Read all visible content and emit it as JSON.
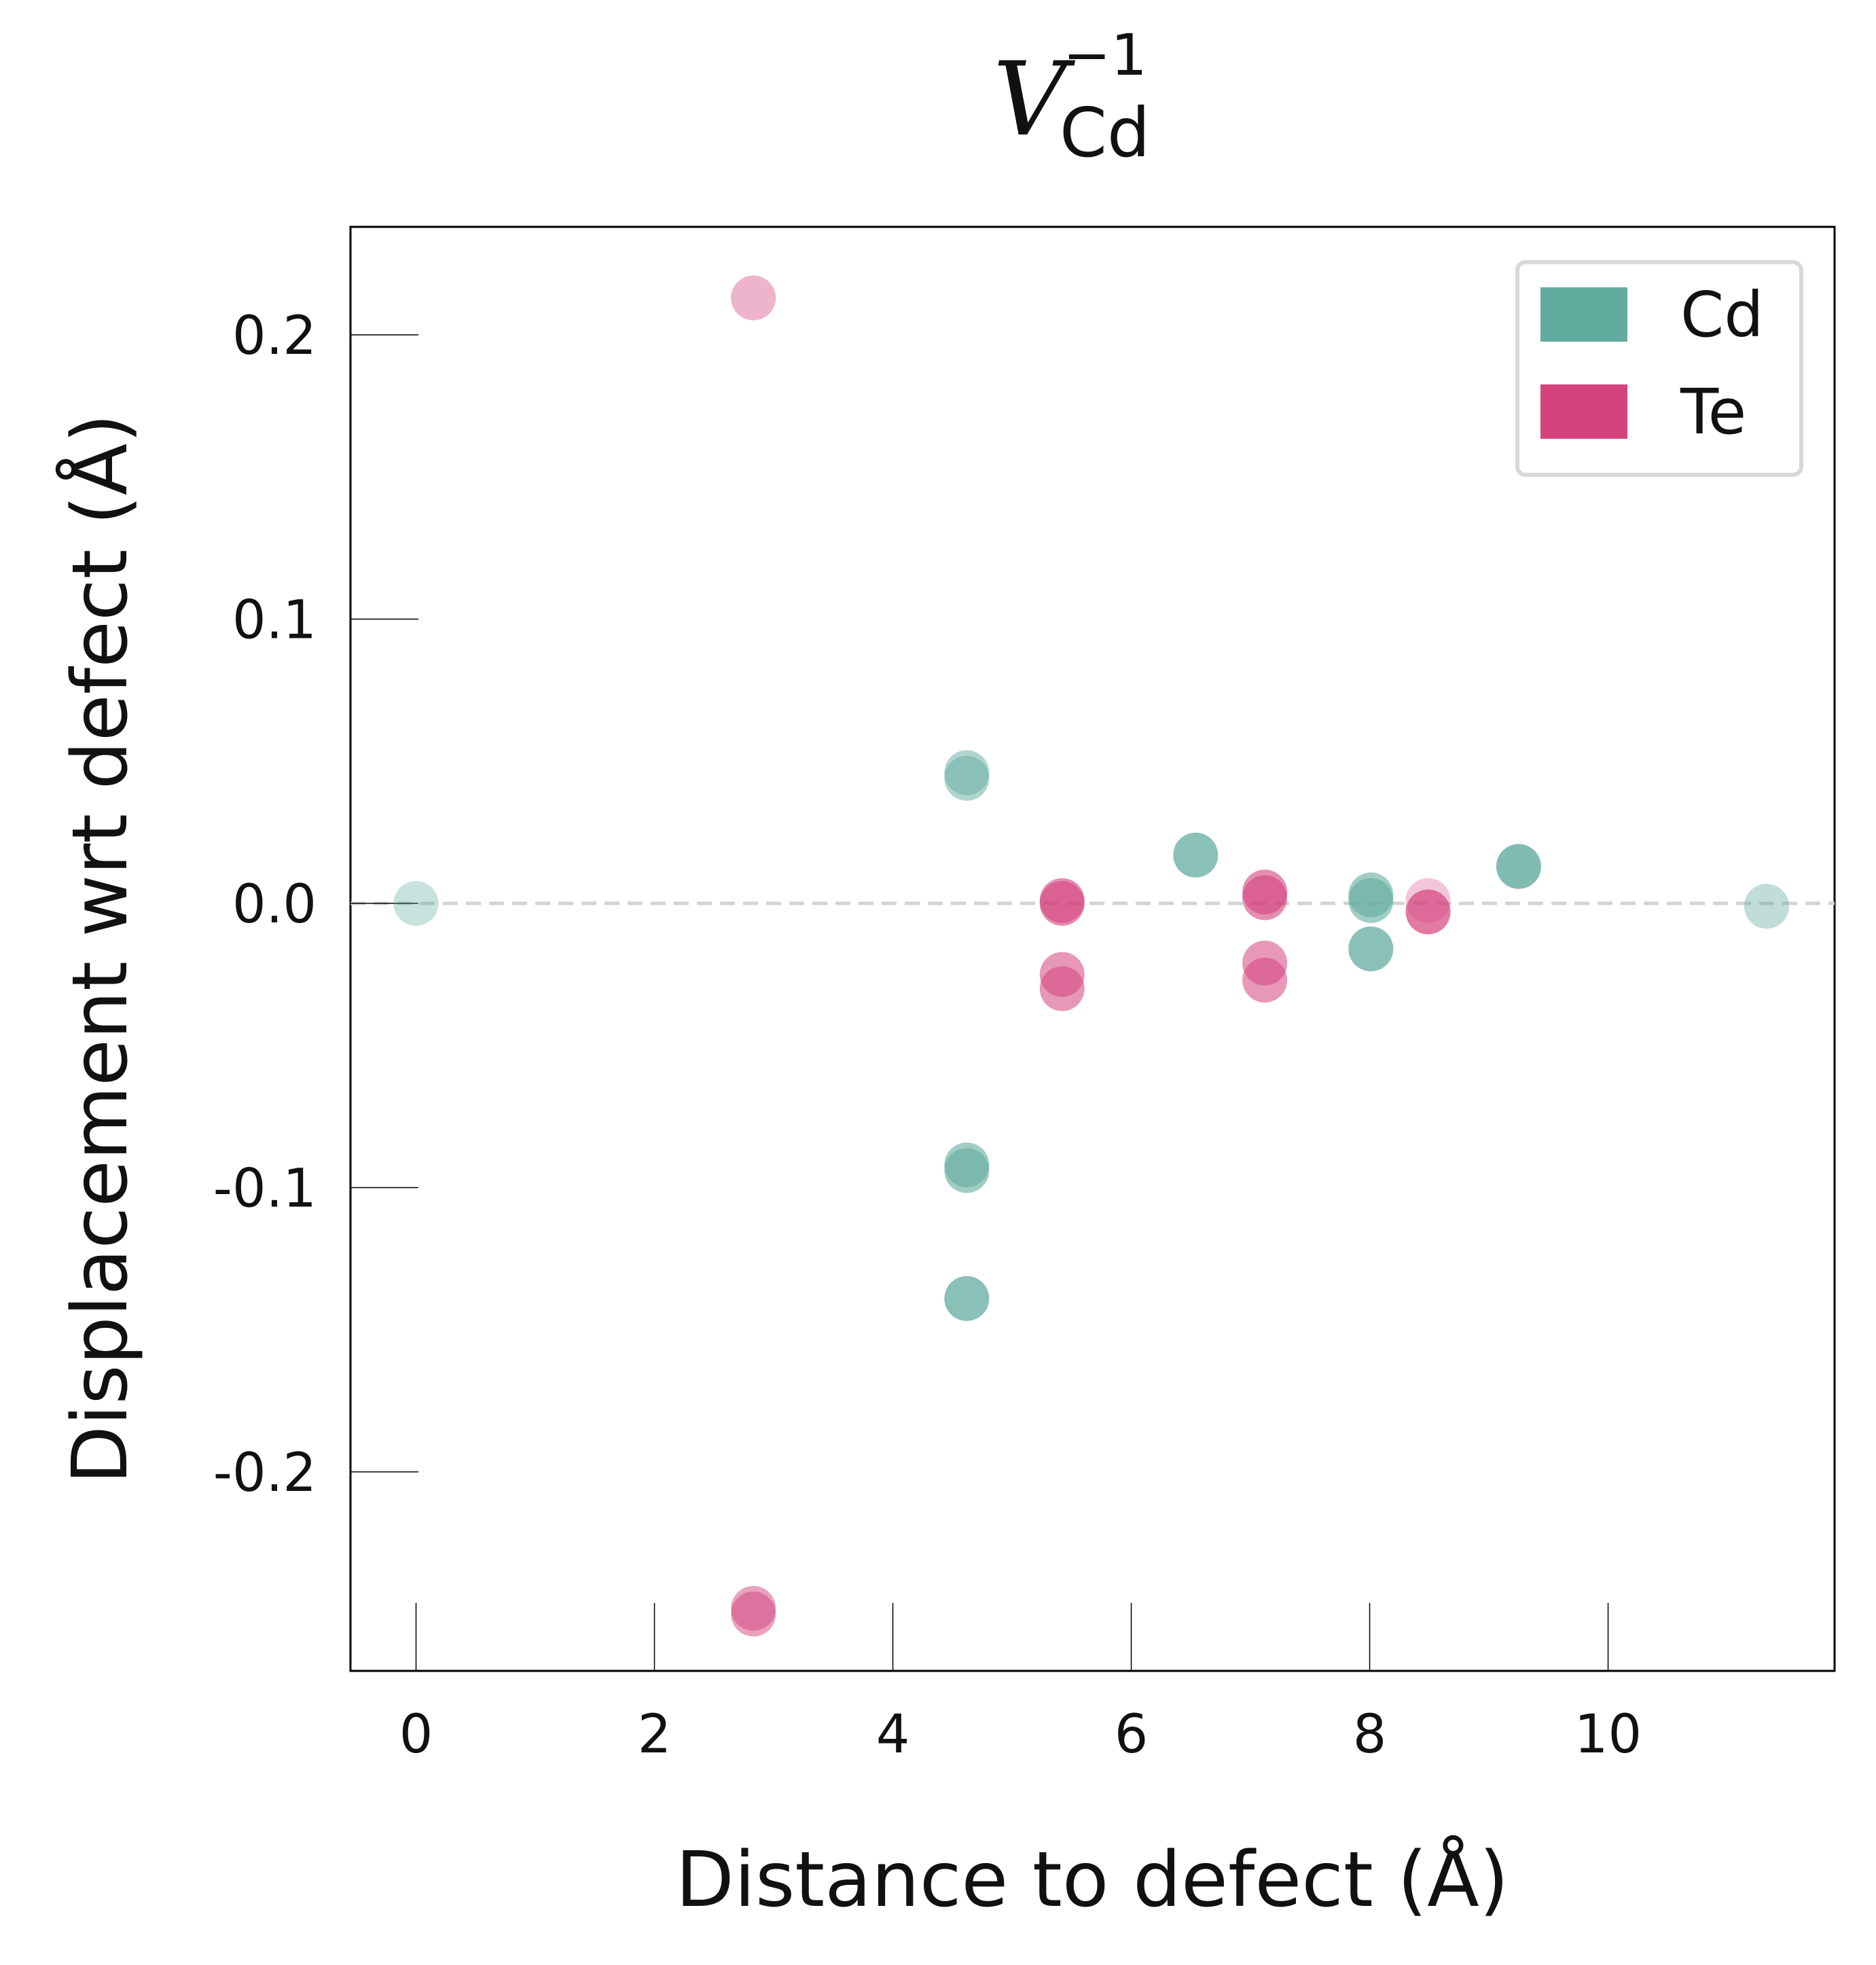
{
  "chart_data": {
    "type": "scatter",
    "title": {
      "main": "V",
      "superscript": "−1",
      "subscript": "Cd"
    },
    "xlabel": "Distance to defect (Å)",
    "ylabel": "Displacement wrt defect (Å)",
    "xlim": [
      -0.55,
      11.9
    ],
    "ylim": [
      -0.27,
      0.238
    ],
    "x_ticks": [
      0,
      2,
      4,
      6,
      8,
      10
    ],
    "x_tick_labels": [
      "0",
      "2",
      "4",
      "6",
      "8",
      "10"
    ],
    "y_ticks": [
      0.2,
      0.1,
      0.0,
      -0.1,
      -0.2
    ],
    "y_tick_labels": [
      "0.2",
      "0.1",
      "0.0",
      "-0.1",
      "-0.2"
    ],
    "reference_line": {
      "y": 0.0,
      "style": "dashed",
      "color": "#d3d3d3"
    },
    "grid": false,
    "legend": {
      "position": "top-right"
    },
    "series": [
      {
        "name": "Cd",
        "color": "#62ab9f",
        "points": [
          {
            "x": 0.0,
            "y": 0.0,
            "alpha": 0.35
          },
          {
            "x": 4.62,
            "y": 0.046,
            "alpha": 0.5
          },
          {
            "x": 4.62,
            "y": 0.044,
            "alpha": 0.5
          },
          {
            "x": 4.62,
            "y": -0.092,
            "alpha": 0.6
          },
          {
            "x": 4.62,
            "y": -0.094,
            "alpha": 0.6
          },
          {
            "x": 4.62,
            "y": -0.139,
            "alpha": 0.75
          },
          {
            "x": 6.54,
            "y": 0.017,
            "alpha": 0.75
          },
          {
            "x": 8.01,
            "y": 0.003,
            "alpha": 0.6
          },
          {
            "x": 8.01,
            "y": 0.001,
            "alpha": 0.6
          },
          {
            "x": 8.01,
            "y": -0.016,
            "alpha": 0.75
          },
          {
            "x": 9.25,
            "y": 0.013,
            "alpha": 0.8
          },
          {
            "x": 11.33,
            "y": -0.001,
            "alpha": 0.4
          }
        ]
      },
      {
        "name": "Te",
        "color": "#d4437e",
        "points": [
          {
            "x": 2.83,
            "y": 0.213,
            "alpha": 0.4
          },
          {
            "x": 2.83,
            "y": -0.248,
            "alpha": 0.5
          },
          {
            "x": 2.83,
            "y": -0.25,
            "alpha": 0.5
          },
          {
            "x": 5.42,
            "y": 0.0,
            "alpha": 0.6
          },
          {
            "x": 5.42,
            "y": 0.001,
            "alpha": 0.6
          },
          {
            "x": 5.42,
            "y": -0.025,
            "alpha": 0.55
          },
          {
            "x": 5.42,
            "y": -0.03,
            "alpha": 0.55
          },
          {
            "x": 7.12,
            "y": 0.004,
            "alpha": 0.6
          },
          {
            "x": 7.12,
            "y": 0.002,
            "alpha": 0.6
          },
          {
            "x": 7.12,
            "y": -0.021,
            "alpha": 0.55
          },
          {
            "x": 7.12,
            "y": -0.027,
            "alpha": 0.55
          },
          {
            "x": 8.49,
            "y": 0.001,
            "alpha": 0.3
          },
          {
            "x": 8.49,
            "y": -0.003,
            "alpha": 0.7
          }
        ]
      }
    ]
  }
}
